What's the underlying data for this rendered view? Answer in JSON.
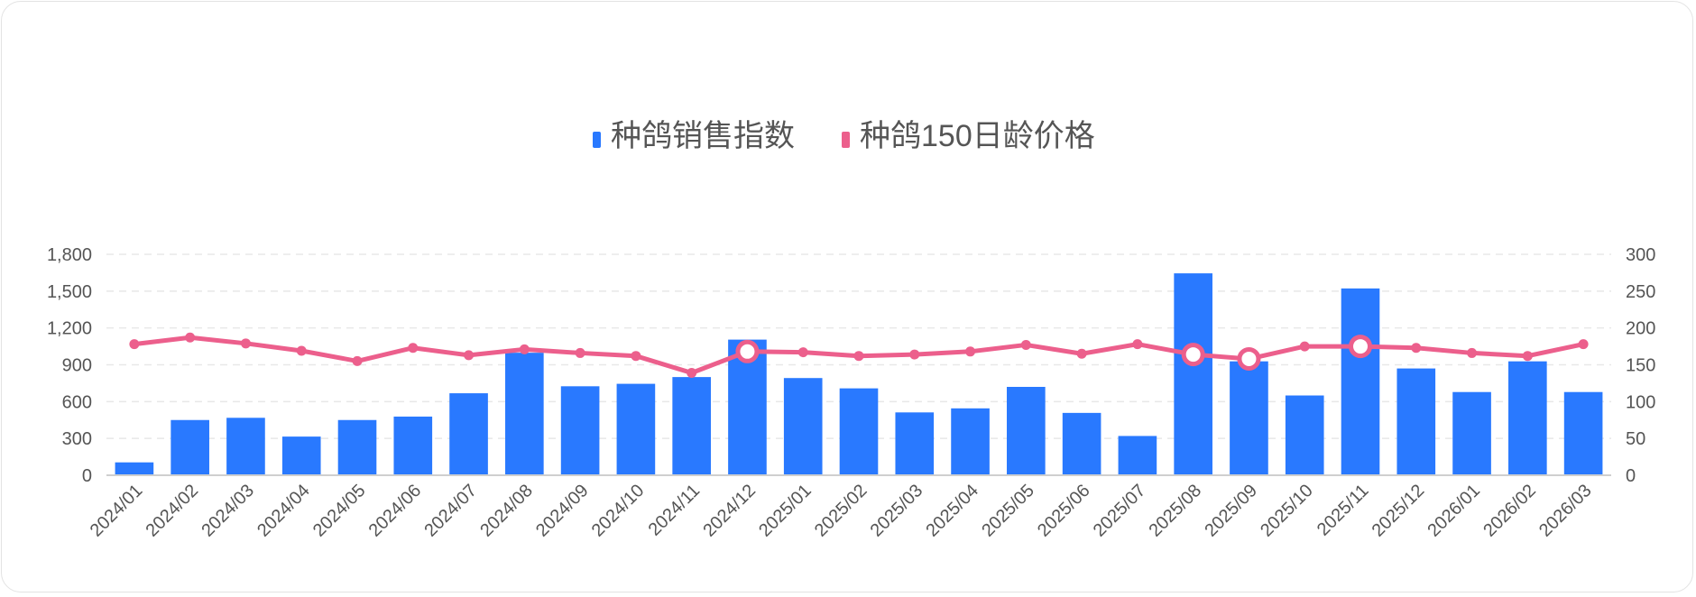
{
  "chart_data": {
    "type": "bar+line",
    "categories": [
      "2024/01",
      "2024/02",
      "2024/03",
      "2024/04",
      "2024/05",
      "2024/06",
      "2024/07",
      "2024/08",
      "2024/09",
      "2024/10",
      "2024/11",
      "2024/12",
      "2025/01",
      "2025/02",
      "2025/03",
      "2025/04",
      "2025/05",
      "2025/06",
      "2025/07",
      "2025/08",
      "2025/09",
      "2025/10",
      "2025/11",
      "2025/12",
      "2026/01",
      "2026/02",
      "2026/03"
    ],
    "series": [
      {
        "name": "种鸽销售指数",
        "type": "bar",
        "axis": "left",
        "color": "#2979ff",
        "values": [
          105,
          450,
          468,
          315,
          450,
          478,
          668,
          998,
          725,
          745,
          800,
          1105,
          792,
          708,
          512,
          545,
          720,
          508,
          320,
          1645,
          928,
          650,
          1522,
          870,
          678,
          928,
          678
        ]
      },
      {
        "name": "种鸽150日龄价格",
        "type": "line",
        "axis": "right",
        "color": "#ec5f8c",
        "values": [
          178,
          187,
          179,
          169,
          155,
          173,
          163,
          171,
          166,
          162,
          139,
          168,
          167,
          162,
          164,
          168,
          177,
          165,
          178,
          164,
          158,
          175,
          175,
          173,
          166,
          162,
          178
        ],
        "highlighted": [
          "2024/12",
          "2025/08",
          "2025/09",
          "2025/11"
        ]
      }
    ],
    "y_left": {
      "min": 0,
      "max": 1800,
      "ticks": [
        "0",
        "300",
        "600",
        "900",
        "1,200",
        "1,500",
        "1,800"
      ]
    },
    "y_right": {
      "min": 0,
      "max": 300,
      "ticks": [
        "0",
        "50",
        "100",
        "150",
        "200",
        "250",
        "300"
      ]
    },
    "grid": "horizontal-dashed",
    "legend": "top-center"
  }
}
